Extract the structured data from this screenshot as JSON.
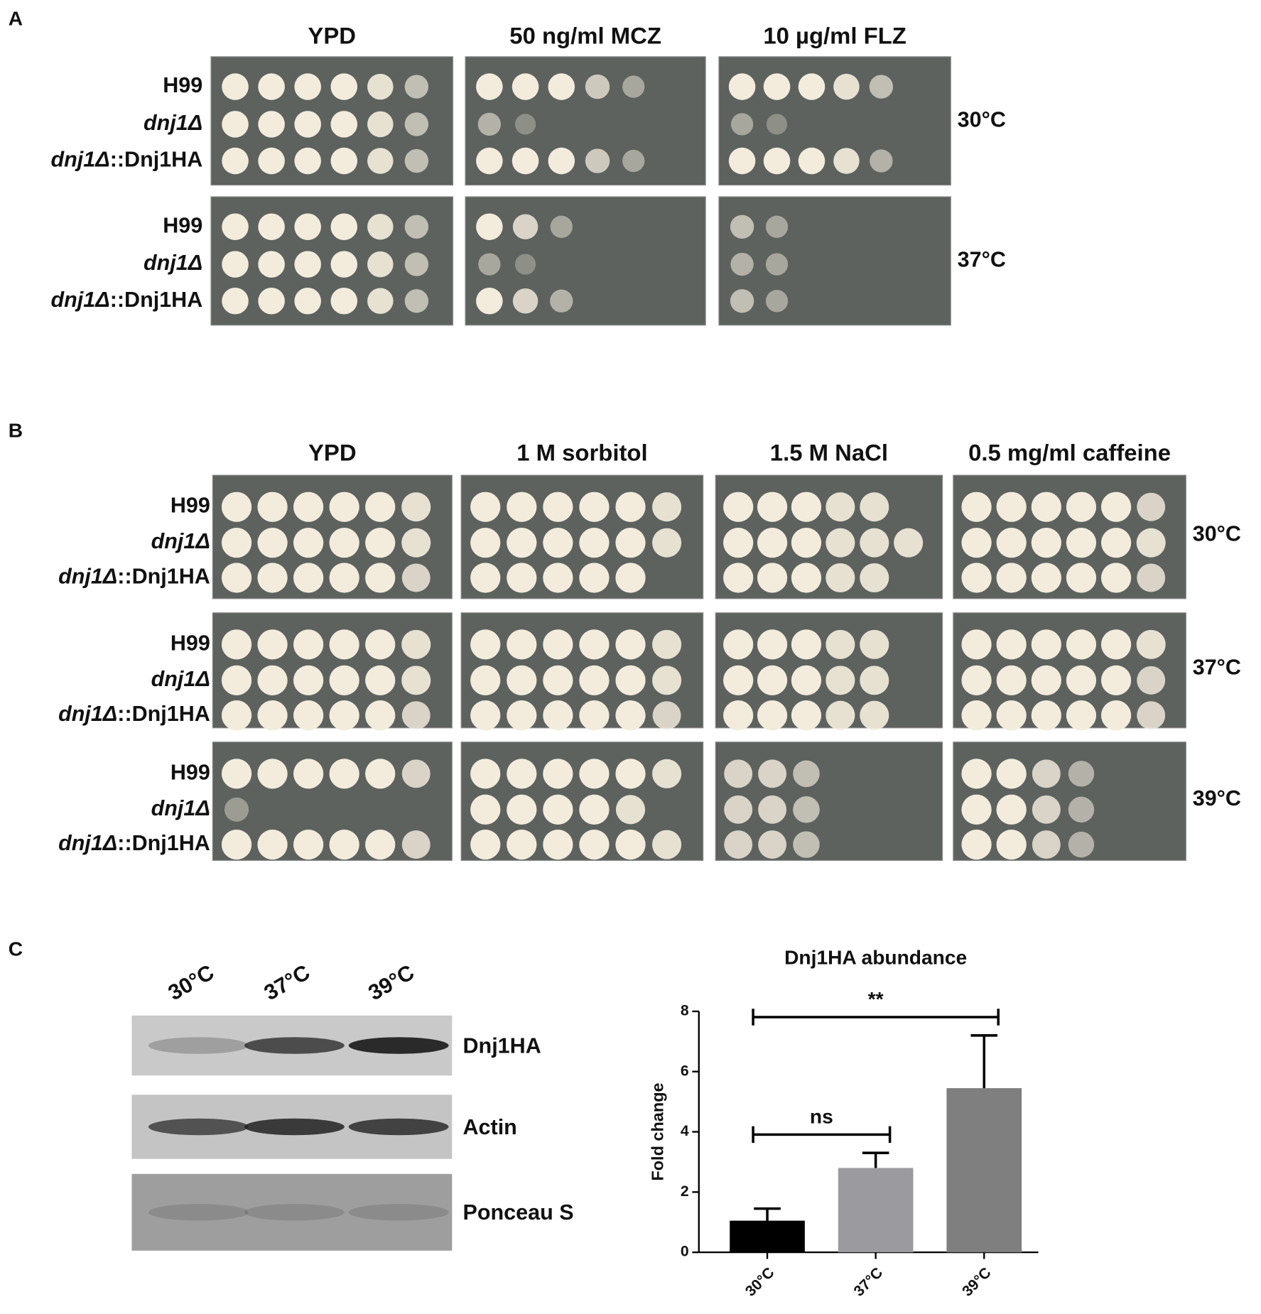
{
  "panel_a": {
    "label": "A",
    "conditions": [
      "YPD",
      "50 ng/ml MCZ",
      "10 µg/ml FLZ"
    ],
    "strains": [
      {
        "name": "H99"
      },
      {
        "gene": "dnj1Δ"
      },
      {
        "gene": "dnj1Δ",
        "suffix": "::Dnj1HA"
      }
    ],
    "temperatures": [
      "30°C",
      "37°C"
    ]
  },
  "panel_b": {
    "label": "B",
    "conditions": [
      "YPD",
      "1 M sorbitol",
      "1.5 M NaCl",
      "0.5 mg/ml caffeine"
    ],
    "strains": [
      {
        "name": "H99"
      },
      {
        "gene": "dnj1Δ"
      },
      {
        "gene": "dnj1Δ",
        "suffix": "::Dnj1HA"
      }
    ],
    "temperatures": [
      "30°C",
      "37°C",
      "39°C"
    ]
  },
  "panel_c": {
    "label": "C",
    "lanes": [
      "30°C",
      "37°C",
      "39°C"
    ],
    "bands": [
      "Dnj1HA",
      "Actin",
      "Ponceau S"
    ]
  },
  "chart_data": {
    "type": "bar",
    "title": "Dnj1HA abundance",
    "y_label": "Fold change",
    "categories": [
      "30°C",
      "37°C",
      "39°C"
    ],
    "values": [
      1.05,
      2.8,
      5.45
    ],
    "errors": [
      0.4,
      0.5,
      1.75
    ],
    "colors": [
      "#000000",
      "#9b9b9f",
      "#7f7f7f"
    ],
    "ylim": [
      0,
      8
    ],
    "yticks": [
      0,
      2,
      4,
      6,
      8
    ],
    "comparisons": [
      {
        "pair": [
          "30°C",
          "37°C"
        ],
        "label": "ns"
      },
      {
        "pair": [
          "30°C",
          "39°C"
        ],
        "label": "**"
      }
    ]
  }
}
